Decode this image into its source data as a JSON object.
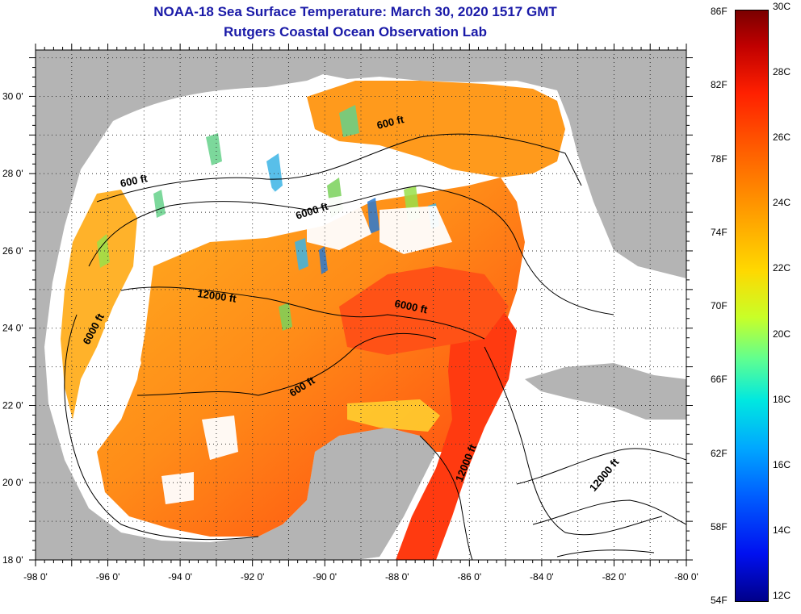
{
  "title": {
    "line1": "NOAA-18 Sea Surface Temperature:  March 30, 2020 1517 GMT",
    "line2": "Rutgers Coastal Ocean Observation Lab"
  },
  "map": {
    "lon_ticks": [
      "-98 0'",
      "-96 0'",
      "-94 0'",
      "-92 0'",
      "-90 0'",
      "-88 0'",
      "-86 0'",
      "-84 0'",
      "-82 0'",
      "-80 0'"
    ],
    "lat_ticks": [
      "30 0'",
      "28 0'",
      "26 0'",
      "24 0'",
      "22 0'",
      "20 0'",
      "18 0'"
    ],
    "lon_range": [
      -98,
      -80
    ],
    "lat_range": [
      18,
      31.2
    ],
    "contour_labels": [
      "600 ft",
      "600 ft",
      "6000 ft",
      "12000 ft",
      "6000 ft",
      "6000 ft",
      "600 ft",
      "12000 ft",
      "12000 ft"
    ],
    "colors": {
      "land": "#b4b4b4",
      "no_data": "#ffffff",
      "warm": "#ff4a10",
      "mid": "#ff9a18",
      "cool": "#ffcc30"
    }
  },
  "colorbar": {
    "f_labels": [
      "86F",
      "82F",
      "78F",
      "74F",
      "70F",
      "66F",
      "62F",
      "58F",
      "54F"
    ],
    "c_labels": [
      "30C",
      "28C",
      "26C",
      "24C",
      "22C",
      "20C",
      "18C",
      "16C",
      "14C",
      "12C"
    ],
    "range_f": [
      54,
      86
    ],
    "range_c": [
      12,
      30
    ]
  }
}
